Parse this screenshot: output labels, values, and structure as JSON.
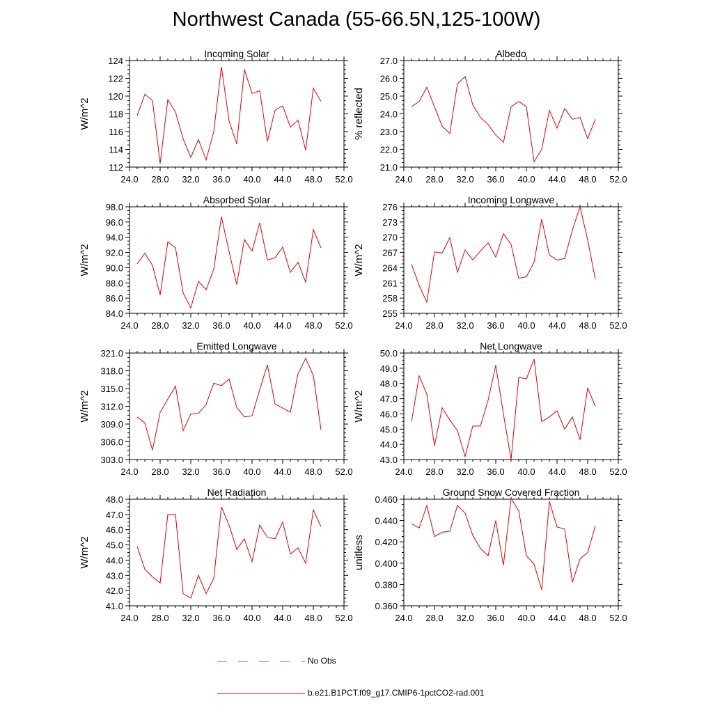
{
  "page": {
    "title": "Northwest Canada (55-66.5N,125-100W)"
  },
  "legend": {
    "obs_label": "No Obs",
    "obs_color": "#5566cc",
    "model_label": "b.e21.B1PCT.f09_g17.CMIP6-1pctCO2-rad.001",
    "model_color": "#e00000"
  },
  "chart_data": [
    {
      "type": "line",
      "title": "Incoming Solar",
      "ylabel": "W/m^2",
      "xlim": [
        24,
        52
      ],
      "ylim": [
        112,
        124
      ],
      "xticks": [
        "24.0",
        "28.0",
        "32.0",
        "36.0",
        "40.0",
        "44.0",
        "48.0",
        "52.0"
      ],
      "yticks": [
        "112",
        "114",
        "116",
        "118",
        "120",
        "122",
        "124"
      ],
      "x": [
        25,
        26,
        27,
        28,
        29,
        30,
        31,
        32,
        33,
        34,
        35,
        36,
        37,
        38,
        39,
        40,
        41,
        42,
        43,
        44,
        45,
        46,
        47,
        48,
        49
      ],
      "series": [
        {
          "values": [
            117.8,
            120.2,
            119.5,
            112.4,
            119.6,
            118.2,
            115.2,
            113.1,
            115.1,
            112.8,
            116.0,
            123.3,
            117.2,
            114.6,
            123.0,
            120.3,
            120.6,
            114.9,
            118.4,
            118.9,
            116.5,
            117.3,
            113.9,
            120.9,
            119.4
          ]
        }
      ]
    },
    {
      "type": "line",
      "title": "Albedo",
      "ylabel": "% reflected",
      "xlim": [
        24,
        52
      ],
      "ylim": [
        21,
        27
      ],
      "xticks": [
        "24.0",
        "28.0",
        "32.0",
        "36.0",
        "40.0",
        "44.0",
        "48.0",
        "52.0"
      ],
      "yticks": [
        "21.0",
        "22.0",
        "23.0",
        "24.0",
        "25.0",
        "26.0",
        "27.0"
      ],
      "x": [
        25,
        26,
        27,
        28,
        29,
        30,
        31,
        32,
        33,
        34,
        35,
        36,
        37,
        38,
        39,
        40,
        41,
        42,
        43,
        44,
        45,
        46,
        47,
        48,
        49
      ],
      "series": [
        {
          "values": [
            24.4,
            24.7,
            25.5,
            24.4,
            23.3,
            22.9,
            25.7,
            26.1,
            24.5,
            23.8,
            23.4,
            22.8,
            22.4,
            24.4,
            24.7,
            24.4,
            21.3,
            22.0,
            24.2,
            23.2,
            24.3,
            23.7,
            23.8,
            22.6,
            23.7
          ]
        }
      ]
    },
    {
      "type": "line",
      "title": "Absorbed Solar",
      "ylabel": "W/m^2",
      "xlim": [
        24,
        52
      ],
      "ylim": [
        84,
        98
      ],
      "xticks": [
        "24.0",
        "28.0",
        "32.0",
        "36.0",
        "40.0",
        "44.0",
        "48.0",
        "52.0"
      ],
      "yticks": [
        "84.0",
        "86.0",
        "88.0",
        "90.0",
        "92.0",
        "94.0",
        "96.0",
        "98.0"
      ],
      "x": [
        25,
        26,
        27,
        28,
        29,
        30,
        31,
        32,
        33,
        34,
        35,
        36,
        37,
        38,
        39,
        40,
        41,
        42,
        43,
        44,
        45,
        46,
        47,
        48,
        49
      ],
      "series": [
        {
          "values": [
            90.5,
            91.9,
            90.3,
            86.4,
            93.4,
            92.6,
            86.7,
            84.7,
            88.2,
            87.1,
            89.8,
            96.7,
            92.1,
            87.8,
            93.7,
            92.2,
            95.9,
            91.0,
            91.3,
            92.7,
            89.4,
            90.7,
            88.1,
            95.0,
            92.6
          ]
        }
      ]
    },
    {
      "type": "line",
      "title": "Incoming Longwave",
      "ylabel": "W/m^2",
      "xlim": [
        24,
        52
      ],
      "ylim": [
        255,
        276
      ],
      "xticks": [
        "24.0",
        "28.0",
        "32.0",
        "36.0",
        "40.0",
        "44.0",
        "48.0",
        "52.0"
      ],
      "yticks": [
        "255",
        "258",
        "261",
        "264",
        "267",
        "270",
        "273",
        "276"
      ],
      "x": [
        25,
        26,
        27,
        28,
        29,
        30,
        31,
        32,
        33,
        34,
        35,
        36,
        37,
        38,
        39,
        40,
        41,
        42,
        43,
        44,
        45,
        46,
        47,
        48,
        49
      ],
      "series": [
        {
          "values": [
            264.7,
            260.5,
            257.2,
            267.1,
            266.9,
            269.9,
            263.1,
            267.5,
            265.5,
            267.3,
            268.9,
            266.1,
            270.7,
            268.6,
            261.9,
            262.2,
            265.1,
            273.6,
            266.5,
            265.5,
            265.8,
            271.4,
            276.0,
            269.5,
            261.7
          ]
        }
      ]
    },
    {
      "type": "line",
      "title": "Emitted Longwave",
      "ylabel": "W/m^2",
      "xlim": [
        24,
        52
      ],
      "ylim": [
        303,
        321
      ],
      "xticks": [
        "24.0",
        "28.0",
        "32.0",
        "36.0",
        "40.0",
        "44.0",
        "48.0",
        "52.0"
      ],
      "yticks": [
        "303.0",
        "306.0",
        "309.0",
        "312.0",
        "315.0",
        "318.0",
        "321.0"
      ],
      "x": [
        25,
        26,
        27,
        28,
        29,
        30,
        31,
        32,
        33,
        34,
        35,
        36,
        37,
        38,
        39,
        40,
        41,
        42,
        43,
        44,
        45,
        46,
        47,
        48,
        49
      ],
      "series": [
        {
          "values": [
            310.2,
            309.2,
            304.6,
            311.0,
            313.2,
            315.4,
            307.9,
            310.7,
            310.8,
            312.3,
            315.9,
            315.5,
            316.6,
            311.8,
            310.2,
            310.4,
            314.8,
            319.0,
            312.4,
            311.7,
            311.0,
            317.5,
            320.1,
            317.2,
            308.0
          ]
        }
      ]
    },
    {
      "type": "line",
      "title": "Net Longwave",
      "ylabel": "W/m^2",
      "xlim": [
        24,
        52
      ],
      "ylim": [
        43,
        50
      ],
      "xticks": [
        "24.0",
        "28.0",
        "32.0",
        "36.0",
        "40.0",
        "44.0",
        "48.0",
        "52.0"
      ],
      "yticks": [
        "43.0",
        "44.0",
        "45.0",
        "46.0",
        "47.0",
        "48.0",
        "49.0",
        "50.0"
      ],
      "x": [
        25,
        26,
        27,
        28,
        29,
        30,
        31,
        32,
        33,
        34,
        35,
        36,
        37,
        38,
        39,
        40,
        41,
        42,
        43,
        44,
        45,
        46,
        47,
        48,
        49
      ],
      "series": [
        {
          "values": [
            45.5,
            48.5,
            47.3,
            43.9,
            46.4,
            45.6,
            44.9,
            43.2,
            45.2,
            45.2,
            46.9,
            49.2,
            46.0,
            43.0,
            48.4,
            48.3,
            49.6,
            45.5,
            45.8,
            46.2,
            45.0,
            45.8,
            44.3,
            47.7,
            46.5
          ]
        }
      ]
    },
    {
      "type": "line",
      "title": "Net Radiation",
      "ylabel": "W/m^2",
      "xlim": [
        24,
        52
      ],
      "ylim": [
        41,
        48
      ],
      "xticks": [
        "24.0",
        "28.0",
        "32.0",
        "36.0",
        "40.0",
        "44.0",
        "48.0",
        "52.0"
      ],
      "yticks": [
        "41.0",
        "42.0",
        "43.0",
        "44.0",
        "45.0",
        "46.0",
        "47.0",
        "48.0"
      ],
      "x": [
        25,
        26,
        27,
        28,
        29,
        30,
        31,
        32,
        33,
        34,
        35,
        36,
        37,
        38,
        39,
        40,
        41,
        42,
        43,
        44,
        45,
        46,
        47,
        48,
        49
      ],
      "series": [
        {
          "values": [
            44.9,
            43.4,
            42.9,
            42.5,
            47.0,
            47.0,
            41.8,
            41.5,
            43.0,
            41.8,
            42.8,
            47.5,
            46.3,
            44.7,
            45.4,
            43.9,
            46.3,
            45.5,
            45.4,
            46.5,
            44.4,
            44.8,
            43.8,
            47.3,
            46.2
          ]
        }
      ]
    },
    {
      "type": "line",
      "title": "Ground Snow Covered Fraction",
      "ylabel": "unitless",
      "xlim": [
        24,
        52
      ],
      "ylim": [
        0.36,
        0.46
      ],
      "xticks": [
        "24.0",
        "28.0",
        "32.0",
        "36.0",
        "40.0",
        "44.0",
        "48.0",
        "52.0"
      ],
      "yticks": [
        "0.360",
        "0.380",
        "0.400",
        "0.420",
        "0.440",
        "0.460"
      ],
      "x": [
        25,
        26,
        27,
        28,
        29,
        30,
        31,
        32,
        33,
        34,
        35,
        36,
        37,
        38,
        39,
        40,
        41,
        42,
        43,
        44,
        45,
        46,
        47,
        48,
        49
      ],
      "series": [
        {
          "values": [
            0.437,
            0.433,
            0.454,
            0.425,
            0.429,
            0.43,
            0.454,
            0.447,
            0.426,
            0.414,
            0.407,
            0.44,
            0.398,
            0.461,
            0.449,
            0.407,
            0.399,
            0.375,
            0.458,
            0.434,
            0.432,
            0.382,
            0.404,
            0.41,
            0.435
          ]
        }
      ]
    }
  ]
}
